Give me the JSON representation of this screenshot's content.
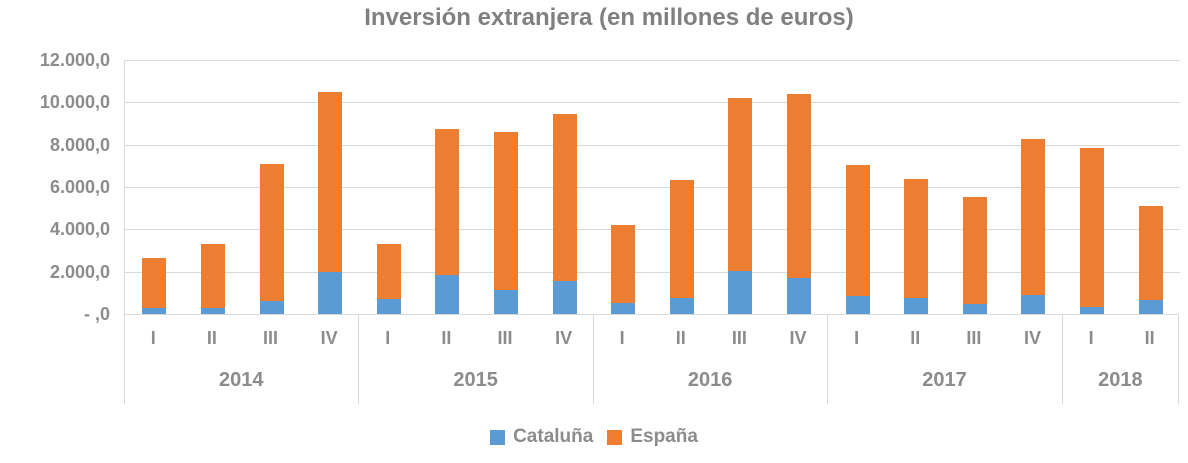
{
  "title": "Inversión extranjera (en millones de euros)",
  "colors": {
    "cataluna": "#5B9BD5",
    "espana": "#ED7D31",
    "gridline": "#D9D9D9",
    "label_text": "#8C8C8C"
  },
  "y_axis": {
    "tick_labels_top_to_bottom": [
      "12.000,0",
      "10.000,0",
      "8.000,0",
      "6.000,0",
      "4.000,0",
      "2.000,0",
      "-  ,0"
    ],
    "max": 12000,
    "min": 0,
    "step": 2000
  },
  "legend": {
    "items": [
      {
        "label": "Cataluña",
        "color": "#5B9BD5"
      },
      {
        "label": "España",
        "color": "#ED7D31"
      }
    ]
  },
  "chart_data": {
    "type": "bar",
    "stacked": true,
    "title": "Inversión extranjera (en millones de euros)",
    "xlabel": "",
    "ylabel": "",
    "ylim": [
      0,
      12000
    ],
    "grid": "horizontal",
    "legend_position": "bottom",
    "groups": [
      {
        "year": "2014",
        "quarters": [
          "I",
          "II",
          "III",
          "IV"
        ]
      },
      {
        "year": "2015",
        "quarters": [
          "I",
          "II",
          "III",
          "IV"
        ]
      },
      {
        "year": "2016",
        "quarters": [
          "I",
          "II",
          "III",
          "IV"
        ]
      },
      {
        "year": "2017",
        "quarters": [
          "I",
          "II",
          "III",
          "IV"
        ]
      },
      {
        "year": "2018",
        "quarters": [
          "I",
          "II"
        ]
      }
    ],
    "categories": [
      "2014-I",
      "2014-II",
      "2014-III",
      "2014-IV",
      "2015-I",
      "2015-II",
      "2015-III",
      "2015-IV",
      "2016-I",
      "2016-II",
      "2016-III",
      "2016-IV",
      "2017-I",
      "2017-II",
      "2017-III",
      "2017-IV",
      "2018-I",
      "2018-II"
    ],
    "series": [
      {
        "name": "Cataluña",
        "color": "#5B9BD5",
        "values": [
          300,
          280,
          600,
          2000,
          700,
          1850,
          1150,
          1550,
          500,
          750,
          2050,
          1700,
          850,
          750,
          480,
          900,
          350,
          650
        ]
      },
      {
        "name": "España",
        "color": "#ED7D31",
        "values": [
          2350,
          3020,
          6500,
          8500,
          2600,
          6900,
          7450,
          7900,
          3700,
          5600,
          8150,
          8700,
          6200,
          5650,
          5070,
          7350,
          7500,
          4450
        ]
      }
    ],
    "stacked_totals": [
      2650,
      3300,
      7100,
      10500,
      3300,
      8750,
      8600,
      9450,
      4200,
      6350,
      10200,
      10400,
      7050,
      6400,
      5550,
      8250,
      7850,
      5100
    ]
  }
}
